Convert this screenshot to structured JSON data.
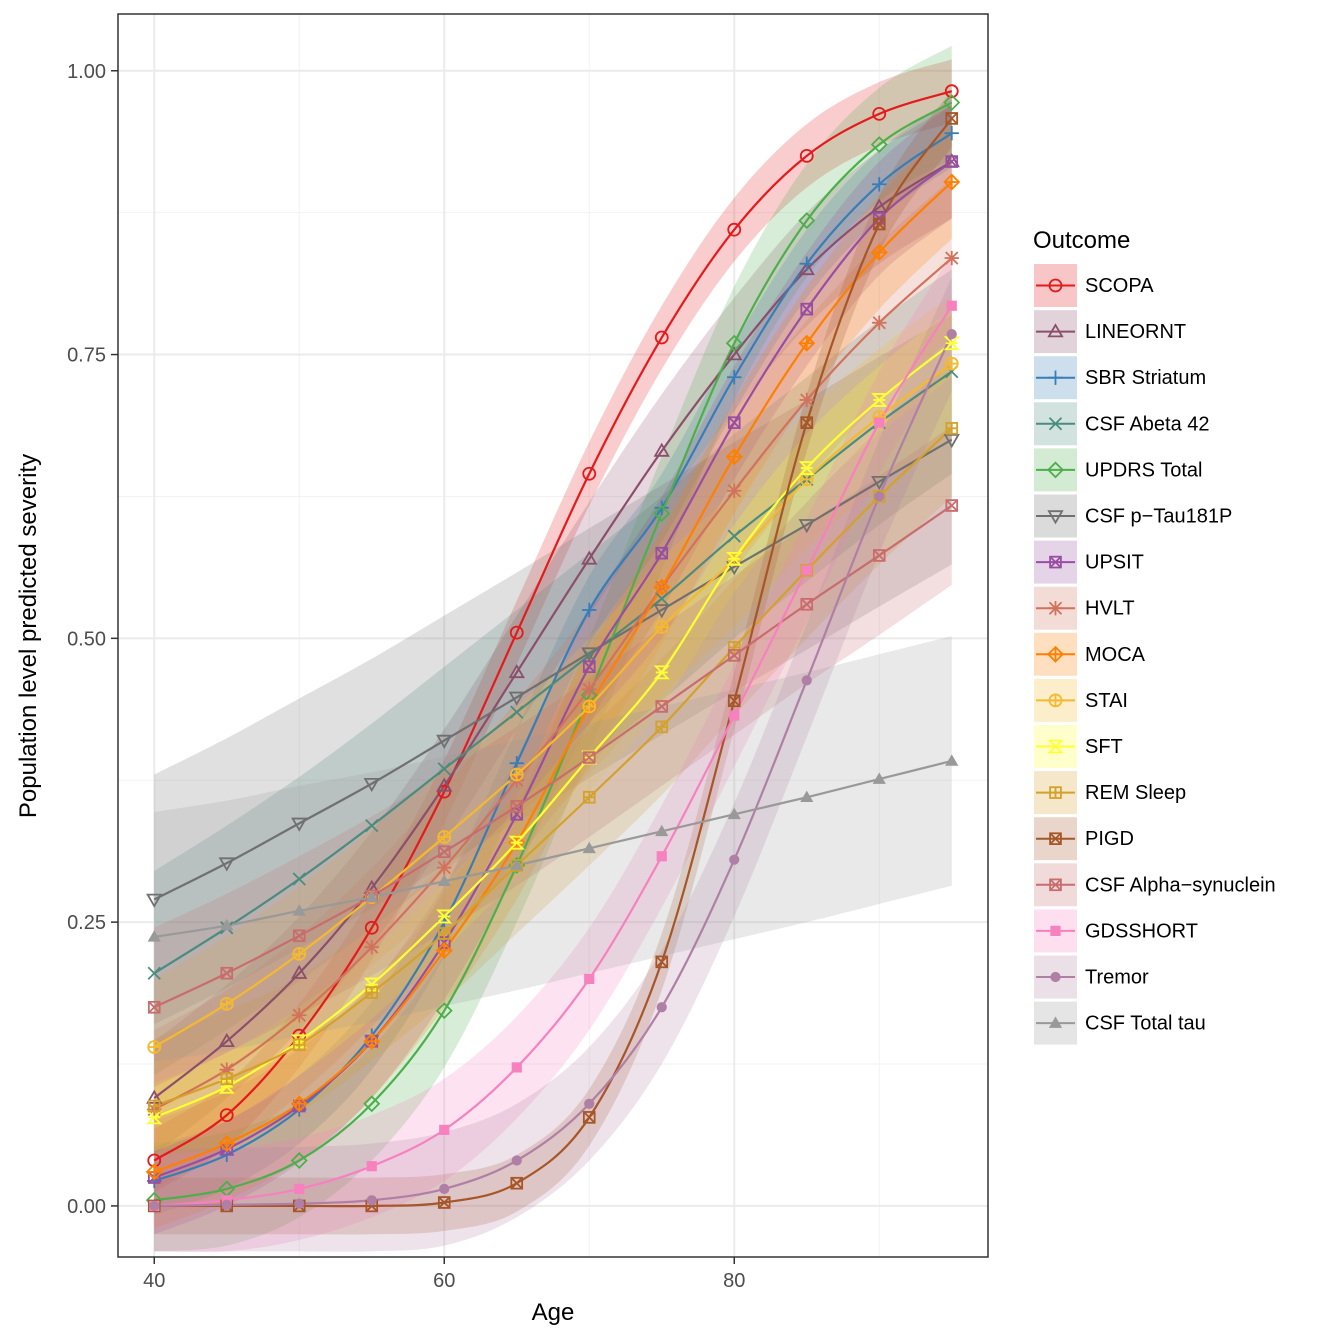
{
  "chart_data": {
    "type": "line",
    "title": "",
    "xlabel": "Age",
    "ylabel": "Population level predicted severity",
    "xlim": [
      37.5,
      97.5
    ],
    "ylim": [
      -0.045,
      1.05
    ],
    "x_ticks": [
      40,
      60,
      80
    ],
    "x_tick_labels": [
      "40",
      "60",
      "80"
    ],
    "y_ticks": [
      0,
      0.25,
      0.5,
      0.75,
      1.0
    ],
    "y_tick_labels": [
      "0.00",
      "0.25",
      "0.50",
      "0.75",
      "1.00"
    ],
    "grid": true,
    "legend": {
      "title": "Outcome",
      "position": "right"
    },
    "x": [
      40,
      45,
      50,
      55,
      60,
      65,
      70,
      75,
      80,
      85,
      90,
      95
    ],
    "series": [
      {
        "name": "SCOPA",
        "color": "#e41a1c",
        "marker": "circle-open",
        "band": 0.028,
        "values": [
          0.04,
          0.08,
          0.15,
          0.245,
          0.365,
          0.505,
          0.645,
          0.765,
          0.86,
          0.925,
          0.962,
          0.982
        ]
      },
      {
        "name": "LINEORNT",
        "color": "#8c4f6b",
        "marker": "triangle-open",
        "band": 0.05,
        "values": [
          0.095,
          0.145,
          0.205,
          0.28,
          0.37,
          0.47,
          0.57,
          0.665,
          0.75,
          0.825,
          0.88,
          0.92
        ]
      },
      {
        "name": "SBR Striatum",
        "color": "#377eb8",
        "marker": "plus",
        "band": 0.03,
        "values": [
          0.022,
          0.045,
          0.085,
          0.15,
          0.25,
          0.39,
          0.525,
          0.615,
          0.73,
          0.83,
          0.9,
          0.945
        ]
      },
      {
        "name": "CSF Abeta 42",
        "color": "#4b8c7e",
        "marker": "cross",
        "band": 0.09,
        "values": [
          0.205,
          0.245,
          0.288,
          0.335,
          0.385,
          0.435,
          0.485,
          0.535,
          0.59,
          0.64,
          0.69,
          0.735
        ]
      },
      {
        "name": "UPDRS Total",
        "color": "#4daf4a",
        "marker": "diamond-open",
        "band": 0.05,
        "values": [
          0.005,
          0.015,
          0.04,
          0.09,
          0.172,
          0.3,
          0.45,
          0.61,
          0.76,
          0.868,
          0.935,
          0.972
        ]
      },
      {
        "name": "CSF p−Tau181P",
        "color": "#707070",
        "marker": "triangle-down-open",
        "band": 0.11,
        "values": [
          0.27,
          0.302,
          0.337,
          0.372,
          0.41,
          0.448,
          0.487,
          0.525,
          0.563,
          0.6,
          0.638,
          0.675
        ]
      },
      {
        "name": "UPSIT",
        "color": "#984ea3",
        "marker": "square-crossed",
        "band": 0.05,
        "values": [
          0.025,
          0.05,
          0.088,
          0.145,
          0.232,
          0.345,
          0.475,
          0.575,
          0.69,
          0.79,
          0.87,
          0.92
        ]
      },
      {
        "name": "HVLT",
        "color": "#d2725d",
        "marker": "asterisk",
        "band": 0.07,
        "values": [
          0.085,
          0.12,
          0.168,
          0.228,
          0.298,
          0.375,
          0.455,
          0.545,
          0.63,
          0.71,
          0.778,
          0.835
        ]
      },
      {
        "name": "MOCA",
        "color": "#ff7f00",
        "marker": "diamond-plus",
        "band": 0.05,
        "values": [
          0.03,
          0.055,
          0.09,
          0.145,
          0.225,
          0.32,
          0.44,
          0.545,
          0.66,
          0.76,
          0.84,
          0.902
        ]
      },
      {
        "name": "STAI",
        "color": "#f5b92e",
        "marker": "circle-plus",
        "band": 0.06,
        "values": [
          0.14,
          0.178,
          0.222,
          0.272,
          0.325,
          0.38,
          0.44,
          0.51,
          0.57,
          0.64,
          0.695,
          0.742
        ]
      },
      {
        "name": "SFT",
        "color": "#ffff33",
        "marker": "hourglass",
        "band": 0.03,
        "values": [
          0.078,
          0.105,
          0.145,
          0.195,
          0.255,
          0.32,
          0.395,
          0.47,
          0.57,
          0.65,
          0.71,
          0.76
        ]
      },
      {
        "name": "REM Sleep",
        "color": "#d4a12a",
        "marker": "square-plus",
        "band": 0.06,
        "values": [
          0.088,
          0.112,
          0.142,
          0.188,
          0.24,
          0.3,
          0.36,
          0.422,
          0.492,
          0.56,
          0.625,
          0.685
        ]
      },
      {
        "name": "PIGD",
        "color": "#a65628",
        "marker": "square-x",
        "band": 0.025,
        "values": [
          0.0,
          0.0,
          0.0,
          0.0,
          0.003,
          0.02,
          0.078,
          0.215,
          0.445,
          0.69,
          0.865,
          0.958
        ]
      },
      {
        "name": "CSF Alpha−synuclein",
        "color": "#c86d6d",
        "marker": "square-x-open",
        "band": 0.07,
        "values": [
          0.175,
          0.205,
          0.238,
          0.273,
          0.312,
          0.352,
          0.395,
          0.44,
          0.485,
          0.53,
          0.573,
          0.617
        ]
      },
      {
        "name": "GDSSHORT",
        "color": "#f781bf",
        "marker": "square-filled",
        "band": 0.045,
        "values": [
          0.0,
          0.005,
          0.015,
          0.035,
          0.067,
          0.122,
          0.2,
          0.308,
          0.432,
          0.56,
          0.69,
          0.793
        ]
      },
      {
        "name": "Tremor",
        "color": "#b07fa5",
        "marker": "circle-filled",
        "band": 0.05,
        "values": [
          0.0,
          0.001,
          0.002,
          0.005,
          0.015,
          0.04,
          0.09,
          0.175,
          0.305,
          0.463,
          0.625,
          0.768
        ]
      },
      {
        "name": "CSF Total tau",
        "color": "#999999",
        "marker": "triangle-filled",
        "band": 0.11,
        "values": [
          0.237,
          0.247,
          0.26,
          0.272,
          0.286,
          0.3,
          0.315,
          0.33,
          0.345,
          0.36,
          0.376,
          0.392
        ]
      }
    ]
  }
}
